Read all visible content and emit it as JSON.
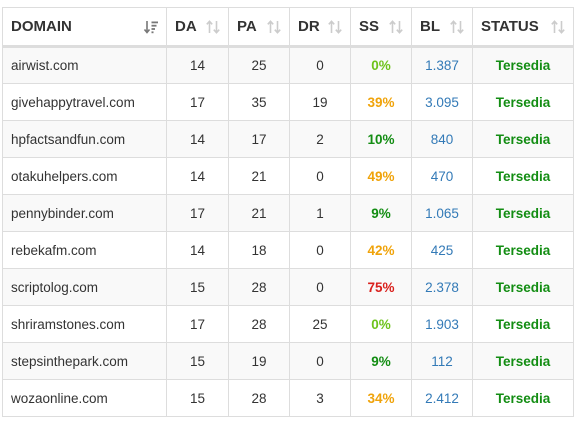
{
  "headers": {
    "domain": "DOMAIN",
    "da": "DA",
    "pa": "PA",
    "dr": "DR",
    "ss": "SS",
    "bl": "BL",
    "status": "STATUS"
  },
  "icons": {
    "active_sort": "sort-amount-desc-icon",
    "inactive_sort": "sort-arrows-icon"
  },
  "colors": {
    "ss_green": "#6ec31c",
    "ss_darkgreen": "#138d13",
    "ss_orange": "#f0a30a",
    "ss_red": "#d9211d",
    "bl_link": "#337ab7",
    "status": "#138d13"
  },
  "rows": [
    {
      "domain": "airwist.com",
      "da": "14",
      "pa": "25",
      "dr": "0",
      "ss": "0%",
      "ss_color": "#6ec31c",
      "bl": "1.387",
      "status": "Tersedia"
    },
    {
      "domain": "givehappytravel.com",
      "da": "17",
      "pa": "35",
      "dr": "19",
      "ss": "39%",
      "ss_color": "#f0a30a",
      "bl": "3.095",
      "status": "Tersedia"
    },
    {
      "domain": "hpfactsandfun.com",
      "da": "14",
      "pa": "17",
      "dr": "2",
      "ss": "10%",
      "ss_color": "#138d13",
      "bl": "840",
      "status": "Tersedia"
    },
    {
      "domain": "otakuhelpers.com",
      "da": "14",
      "pa": "21",
      "dr": "0",
      "ss": "49%",
      "ss_color": "#f0a30a",
      "bl": "470",
      "status": "Tersedia"
    },
    {
      "domain": "pennybinder.com",
      "da": "17",
      "pa": "21",
      "dr": "1",
      "ss": "9%",
      "ss_color": "#138d13",
      "bl": "1.065",
      "status": "Tersedia"
    },
    {
      "domain": "rebekafm.com",
      "da": "14",
      "pa": "18",
      "dr": "0",
      "ss": "42%",
      "ss_color": "#f0a30a",
      "bl": "425",
      "status": "Tersedia"
    },
    {
      "domain": "scriptolog.com",
      "da": "15",
      "pa": "28",
      "dr": "0",
      "ss": "75%",
      "ss_color": "#d9211d",
      "bl": "2.378",
      "status": "Tersedia"
    },
    {
      "domain": "shriramstones.com",
      "da": "17",
      "pa": "28",
      "dr": "25",
      "ss": "0%",
      "ss_color": "#6ec31c",
      "bl": "1.903",
      "status": "Tersedia"
    },
    {
      "domain": "stepsinthepark.com",
      "da": "15",
      "pa": "19",
      "dr": "0",
      "ss": "9%",
      "ss_color": "#138d13",
      "bl": "112",
      "status": "Tersedia"
    },
    {
      "domain": "wozaonline.com",
      "da": "15",
      "pa": "28",
      "dr": "3",
      "ss": "34%",
      "ss_color": "#f0a30a",
      "bl": "2.412",
      "status": "Tersedia"
    }
  ]
}
